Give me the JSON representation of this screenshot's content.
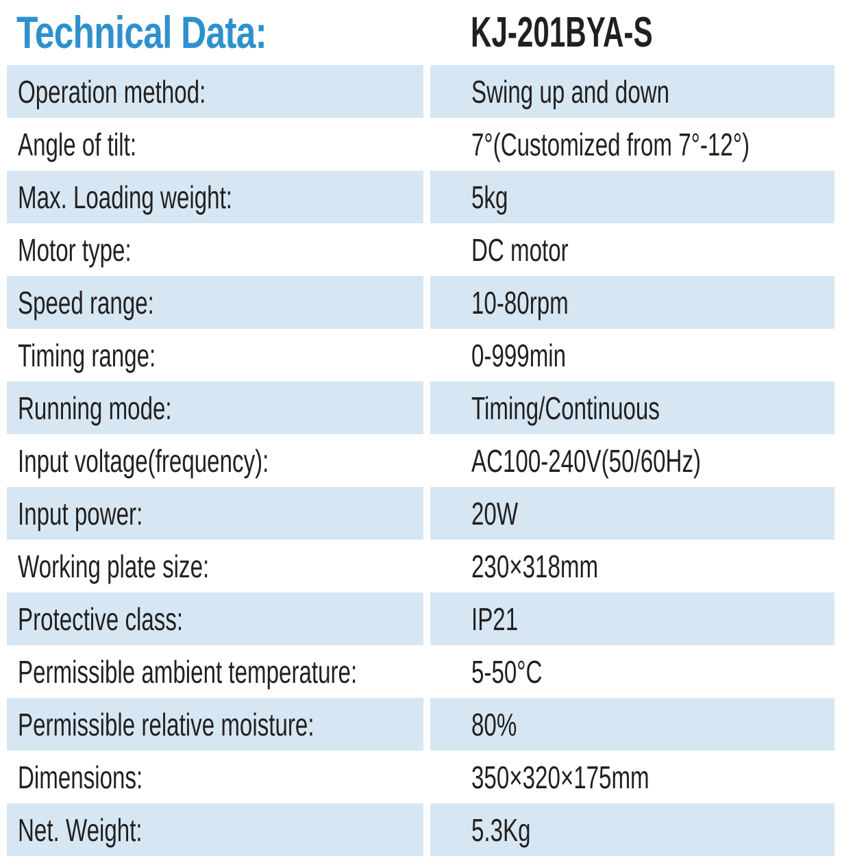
{
  "header": {
    "title": "Technical Data:",
    "model": "KJ-201BYA-S"
  },
  "colors": {
    "accent_blue": "#2e91cd",
    "row_shade_blue": "#d6e7f3",
    "text_black": "#231f20",
    "background": "#ffffff"
  },
  "table": {
    "rows": [
      {
        "label": "Operation method:",
        "value": "Swing up and down"
      },
      {
        "label": "Angle of tilt:",
        "value": "7°(Customized from 7°-12°)"
      },
      {
        "label": "Max. Loading weight:",
        "value": "5kg"
      },
      {
        "label": "Motor type:",
        "value": "DC motor"
      },
      {
        "label": "Speed range:",
        "value": "10-80rpm"
      },
      {
        "label": "Timing range:",
        "value": "0-999min"
      },
      {
        "label": "Running mode:",
        "value": "Timing/Continuous"
      },
      {
        "label": "Input voltage(frequency):",
        "value": "AC100-240V(50/60Hz)"
      },
      {
        "label": "Input power:",
        "value": "20W"
      },
      {
        "label": "Working plate size:",
        "value": "230×318mm"
      },
      {
        "label": "Protective class:",
        "value": "IP21"
      },
      {
        "label": "Permissible ambient temperature:",
        "value": "5-50°C"
      },
      {
        "label": "Permissible relative moisture:",
        "value": "80%"
      },
      {
        "label": "Dimensions:",
        "value": "350×320×175mm"
      },
      {
        "label": "Net. Weight:",
        "value": "5.3Kg"
      }
    ]
  }
}
